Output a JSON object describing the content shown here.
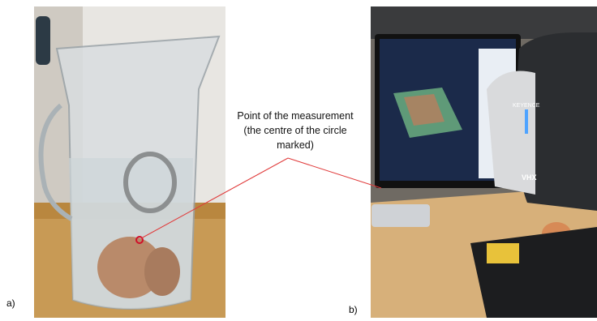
{
  "annotation": {
    "lines": [
      "Point of the measurement",
      "(the centre of the circle",
      "marked)"
    ]
  },
  "panels": [
    {
      "label": "a)"
    },
    {
      "label": "b)"
    }
  ],
  "device": {
    "brand": "KEYENCE",
    "model": "VHX"
  }
}
